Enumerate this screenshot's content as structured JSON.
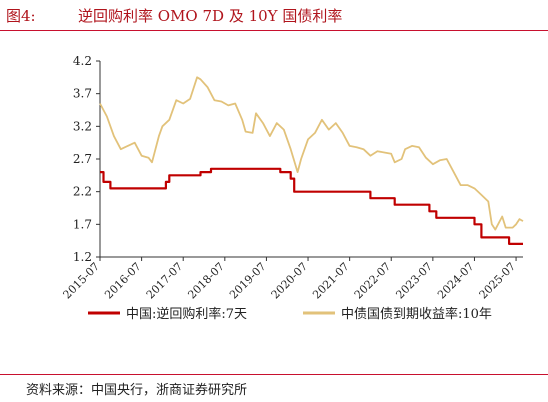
{
  "figure": {
    "number": "图4:",
    "title": "逆回购利率 OMO 7D 及 10Y 国债利率"
  },
  "source": "资料来源：中国央行，浙商证券研究所",
  "colors": {
    "omo": "#c00000",
    "cgb10y": "#e2c27a",
    "accent": "#c8102e"
  },
  "chart_data": {
    "type": "line",
    "title": "逆回购利率 OMO 7D 及 10Y 国债利率",
    "xlabel": "",
    "ylabel": "",
    "ylim": [
      1.2,
      4.2
    ],
    "yticks": [
      "4.2",
      "3.7",
      "3.2",
      "2.7",
      "2.2",
      "1.7",
      "1.2"
    ],
    "xticks": [
      "2015-07",
      "2016-07",
      "2017-07",
      "2018-07",
      "2019-07",
      "2020-07",
      "2021-07",
      "2022-07",
      "2023-07",
      "2024-07",
      "2025-07"
    ],
    "xlim": [
      "2015-07",
      "2025-09"
    ],
    "legend_position": "bottom",
    "series": [
      {
        "name": "中国:逆回购利率:7天",
        "color": "#c00000",
        "step": true,
        "points": [
          [
            "2015-07",
            2.5
          ],
          [
            "2015-08",
            2.35
          ],
          [
            "2015-10",
            2.25
          ],
          [
            "2017-02",
            2.35
          ],
          [
            "2017-03",
            2.45
          ],
          [
            "2017-12",
            2.5
          ],
          [
            "2018-03",
            2.55
          ],
          [
            "2019-11",
            2.5
          ],
          [
            "2020-02",
            2.4
          ],
          [
            "2020-03",
            2.2
          ],
          [
            "2022-01",
            2.1
          ],
          [
            "2022-08",
            2.0
          ],
          [
            "2023-06",
            1.9
          ],
          [
            "2023-08",
            1.8
          ],
          [
            "2024-07",
            1.7
          ],
          [
            "2024-09",
            1.5
          ],
          [
            "2025-05",
            1.4
          ],
          [
            "2025-09",
            1.4
          ]
        ]
      },
      {
        "name": "中债国债到期收益率:10年",
        "color": "#e2c27a",
        "step": false,
        "points": [
          [
            "2015-07",
            3.55
          ],
          [
            "2015-09",
            3.35
          ],
          [
            "2015-11",
            3.05
          ],
          [
            "2016-01",
            2.85
          ],
          [
            "2016-03",
            2.9
          ],
          [
            "2016-05",
            2.95
          ],
          [
            "2016-07",
            2.75
          ],
          [
            "2016-09",
            2.72
          ],
          [
            "2016-10",
            2.65
          ],
          [
            "2016-12",
            3.05
          ],
          [
            "2017-01",
            3.2
          ],
          [
            "2017-03",
            3.3
          ],
          [
            "2017-05",
            3.6
          ],
          [
            "2017-07",
            3.55
          ],
          [
            "2017-09",
            3.62
          ],
          [
            "2017-11",
            3.95
          ],
          [
            "2017-12",
            3.92
          ],
          [
            "2018-02",
            3.8
          ],
          [
            "2018-04",
            3.6
          ],
          [
            "2018-06",
            3.58
          ],
          [
            "2018-08",
            3.52
          ],
          [
            "2018-10",
            3.55
          ],
          [
            "2018-12",
            3.3
          ],
          [
            "2019-01",
            3.12
          ],
          [
            "2019-03",
            3.1
          ],
          [
            "2019-04",
            3.4
          ],
          [
            "2019-06",
            3.25
          ],
          [
            "2019-08",
            3.05
          ],
          [
            "2019-10",
            3.25
          ],
          [
            "2019-12",
            3.15
          ],
          [
            "2020-02",
            2.85
          ],
          [
            "2020-04",
            2.5
          ],
          [
            "2020-05",
            2.7
          ],
          [
            "2020-07",
            3.0
          ],
          [
            "2020-09",
            3.1
          ],
          [
            "2020-11",
            3.3
          ],
          [
            "2021-01",
            3.15
          ],
          [
            "2021-03",
            3.25
          ],
          [
            "2021-05",
            3.1
          ],
          [
            "2021-07",
            2.9
          ],
          [
            "2021-09",
            2.88
          ],
          [
            "2021-11",
            2.85
          ],
          [
            "2022-01",
            2.75
          ],
          [
            "2022-03",
            2.82
          ],
          [
            "2022-05",
            2.8
          ],
          [
            "2022-07",
            2.78
          ],
          [
            "2022-08",
            2.65
          ],
          [
            "2022-10",
            2.7
          ],
          [
            "2022-11",
            2.85
          ],
          [
            "2023-01",
            2.9
          ],
          [
            "2023-03",
            2.88
          ],
          [
            "2023-05",
            2.72
          ],
          [
            "2023-07",
            2.62
          ],
          [
            "2023-09",
            2.68
          ],
          [
            "2023-11",
            2.7
          ],
          [
            "2024-01",
            2.5
          ],
          [
            "2024-03",
            2.3
          ],
          [
            "2024-05",
            2.3
          ],
          [
            "2024-07",
            2.25
          ],
          [
            "2024-09",
            2.15
          ],
          [
            "2024-11",
            2.05
          ],
          [
            "2024-12",
            1.7
          ],
          [
            "2025-01",
            1.62
          ],
          [
            "2025-03",
            1.82
          ],
          [
            "2025-04",
            1.65
          ],
          [
            "2025-06",
            1.65
          ],
          [
            "2025-07",
            1.7
          ],
          [
            "2025-08",
            1.78
          ],
          [
            "2025-09",
            1.75
          ]
        ]
      }
    ]
  }
}
